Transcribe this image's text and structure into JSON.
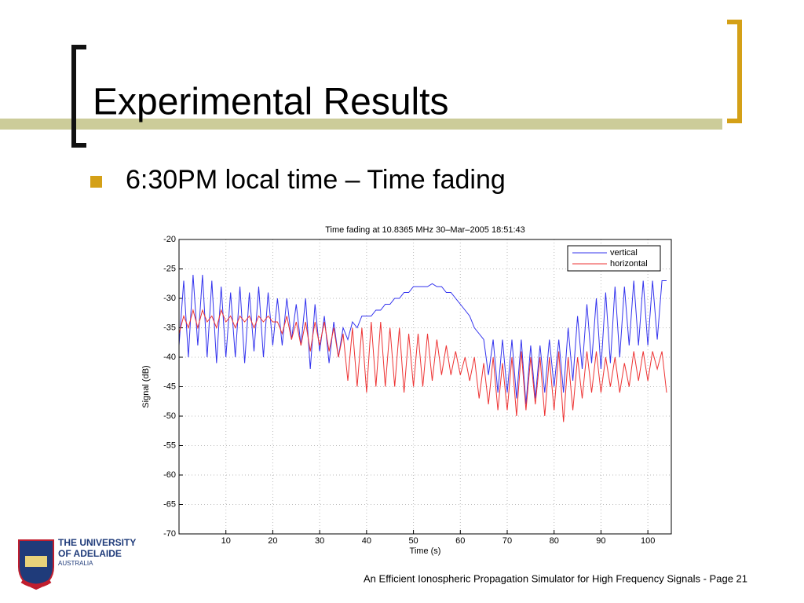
{
  "slide": {
    "title": "Experimental Results",
    "bullet": "6:30PM local time – Time fading"
  },
  "footer": "An Efficient Ionospheric Propagation Simulator for High Frequency Signals - Page 21",
  "logo": {
    "lines": [
      "THE UNIVERSITY",
      "OF ADELAIDE",
      "AUSTRALIA"
    ]
  },
  "chart_data": {
    "type": "line",
    "title": "Time fading at 10.8365 MHz 30–Mar–2005 18:51:43",
    "xlabel": "Time (s)",
    "ylabel": "Signal (dB)",
    "x": [
      0,
      1,
      2,
      3,
      4,
      5,
      6,
      7,
      8,
      9,
      10,
      11,
      12,
      13,
      14,
      15,
      16,
      17,
      18,
      19,
      20,
      21,
      22,
      23,
      24,
      25,
      26,
      27,
      28,
      29,
      30,
      31,
      32,
      33,
      34,
      35,
      36,
      37,
      38,
      39,
      40,
      41,
      42,
      43,
      44,
      45,
      46,
      47,
      48,
      49,
      50,
      51,
      52,
      53,
      54,
      55,
      56,
      57,
      58,
      59,
      60,
      61,
      62,
      63,
      64,
      65,
      66,
      67,
      68,
      69,
      70,
      71,
      72,
      73,
      74,
      75,
      76,
      77,
      78,
      79,
      80,
      81,
      82,
      83,
      84,
      85,
      86,
      87,
      88,
      89,
      90,
      91,
      92,
      93,
      94,
      95,
      96,
      97,
      98,
      99,
      100,
      101,
      102,
      103,
      104
    ],
    "series": [
      {
        "name": "vertical",
        "color": "#3333ee",
        "values": [
          -38,
          -27,
          -40,
          -26,
          -38,
          -26,
          -40,
          -27,
          -41,
          -28,
          -40,
          -29,
          -40,
          -28,
          -41,
          -29,
          -39,
          -28,
          -40,
          -29,
          -38,
          -30,
          -38,
          -30,
          -37,
          -31,
          -38,
          -30,
          -42,
          -31,
          -39,
          -33,
          -41,
          -34,
          -40,
          -35,
          -37,
          -34,
          -35,
          -33,
          -33,
          -33,
          -32,
          -32,
          -31,
          -31,
          -30,
          -30,
          -29,
          -29,
          -28,
          -28,
          -28,
          -28,
          -27.5,
          -28,
          -28,
          -29,
          -29,
          -30,
          -31,
          -32,
          -33,
          -35,
          -36,
          -37,
          -43,
          -37,
          -46,
          -37,
          -46,
          -37,
          -47,
          -37,
          -48,
          -38,
          -47,
          -38,
          -46,
          -37,
          -45,
          -37,
          -46,
          -35,
          -44,
          -33,
          -42,
          -31,
          -41,
          -30,
          -42,
          -29,
          -41,
          -28,
          -40,
          -28,
          -38,
          -27,
          -38,
          -27,
          -38,
          -27,
          -37,
          -27,
          -27
        ]
      },
      {
        "name": "horizontal",
        "color": "#ee3333",
        "values": [
          -36,
          -33,
          -35,
          -32,
          -35,
          -32,
          -34,
          -33,
          -35,
          -32,
          -34,
          -33,
          -35,
          -33,
          -34,
          -33,
          -35,
          -33,
          -34,
          -33,
          -34,
          -34,
          -36,
          -33,
          -37,
          -34,
          -38,
          -34,
          -39,
          -34,
          -38,
          -34,
          -39,
          -35,
          -40,
          -36,
          -44,
          -35,
          -45,
          -35,
          -46,
          -34,
          -45,
          -34,
          -45,
          -35,
          -45,
          -35,
          -46,
          -36,
          -45,
          -36,
          -45,
          -36,
          -44,
          -37,
          -43,
          -38,
          -43,
          -39,
          -43,
          -40,
          -44,
          -40,
          -47,
          -41,
          -48,
          -40,
          -49,
          -41,
          -49,
          -40,
          -50,
          -39,
          -49,
          -40,
          -48,
          -40,
          -50,
          -40,
          -49,
          -39,
          -51,
          -40,
          -49,
          -40,
          -47,
          -39,
          -46,
          -39,
          -46,
          -40,
          -45,
          -40,
          -46,
          -41,
          -45,
          -39,
          -44,
          -39,
          -44,
          -39,
          -42,
          -39,
          -46
        ]
      }
    ],
    "xlim": [
      0,
      105
    ],
    "ylim": [
      -70,
      -20
    ],
    "xticks": [
      10,
      20,
      30,
      40,
      50,
      60,
      70,
      80,
      90,
      100
    ],
    "yticks": [
      -70,
      -65,
      -60,
      -55,
      -50,
      -45,
      -40,
      -35,
      -30,
      -25,
      -20
    ],
    "grid": true,
    "legend": "upper right"
  }
}
